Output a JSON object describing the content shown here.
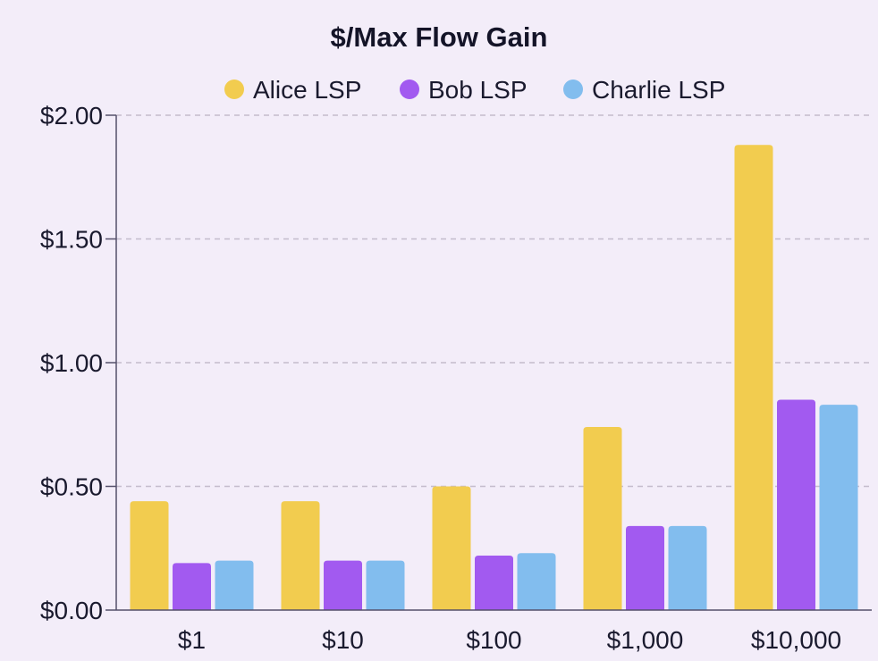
{
  "chart_data": {
    "type": "bar",
    "title": "$/Max Flow Gain",
    "xlabel": "",
    "ylabel": "",
    "categories": [
      "$1",
      "$10",
      "$100",
      "$1,000",
      "$10,000"
    ],
    "series": [
      {
        "name": "Alice LSP",
        "color": "#f2cc4f",
        "values": [
          0.44,
          0.44,
          0.5,
          0.74,
          1.88
        ]
      },
      {
        "name": "Bob LSP",
        "color": "#a25af0",
        "values": [
          0.19,
          0.2,
          0.22,
          0.34,
          0.85
        ]
      },
      {
        "name": "Charlie LSP",
        "color": "#82bdee",
        "values": [
          0.2,
          0.2,
          0.23,
          0.34,
          0.83
        ]
      }
    ],
    "ylim": [
      0,
      2
    ],
    "yticks": [
      0,
      0.5,
      1,
      1.5,
      2
    ],
    "ytick_labels": [
      "$0.00",
      "$0.50",
      "$1.00",
      "$1.50",
      "$2.00"
    ],
    "grid": true,
    "legend_position": "top-center"
  }
}
